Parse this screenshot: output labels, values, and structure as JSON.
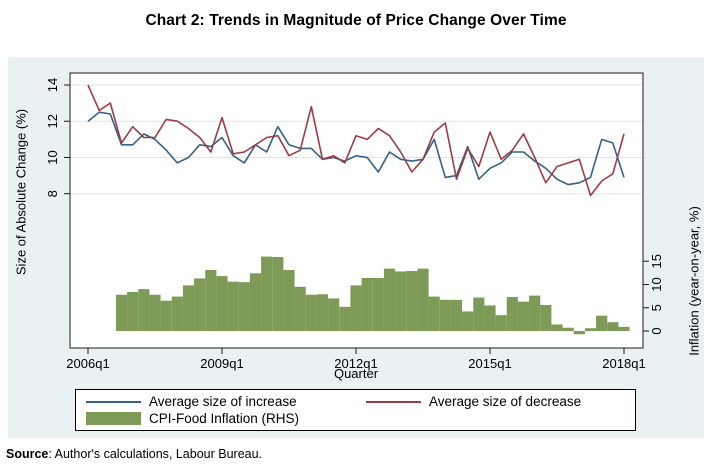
{
  "title": "Chart 2: Trends in Magnitude of Price Change Over Time",
  "source_note": {
    "label": "Source",
    "text": ": Author's calculations, Labour Bureau."
  },
  "colors": {
    "background": "#e9f1f3",
    "plot_background": "#ffffff",
    "gridline": "#d9e6e9",
    "axis": "#1a1a1a",
    "increase_line": "#35618c",
    "decrease_line": "#9e3c46",
    "inflation_bar": "#7d9b57"
  },
  "chart_data": {
    "type": "combo-line-bar",
    "x_axis": {
      "title": "Quarter",
      "tick_labels": [
        "2006q1",
        "2009q1",
        "2012q1",
        "2015q1",
        "2018q1"
      ],
      "tick_positions": [
        0,
        12,
        24,
        36,
        48
      ],
      "start": "2006q1",
      "end": "2018q1",
      "n_quarters": 49
    },
    "left_axis": {
      "title": "Size of Absolute Change (%)",
      "ticks": [
        8,
        10,
        12,
        14
      ],
      "range": [
        7.5,
        14.7
      ],
      "grid": true
    },
    "right_axis": {
      "title": "Inflation (year-on-year, %)",
      "ticks": [
        0,
        5,
        10,
        15
      ],
      "range": [
        -1,
        16.5
      ],
      "grid": false
    },
    "legend": {
      "position": "bottom",
      "border": true
    },
    "series": [
      {
        "name": "Average size of increase",
        "type": "line",
        "axis": "left",
        "color": "#35618c",
        "values": [
          12.0,
          12.5,
          12.4,
          10.7,
          10.7,
          11.3,
          11.0,
          10.4,
          9.7,
          10.0,
          10.7,
          10.6,
          11.1,
          10.1,
          9.7,
          10.7,
          10.3,
          11.7,
          10.7,
          10.5,
          10.5,
          9.9,
          10.0,
          9.8,
          10.1,
          10.0,
          9.2,
          10.3,
          9.9,
          9.8,
          9.9,
          11.0,
          8.9,
          9.0,
          10.6,
          8.8,
          9.4,
          9.7,
          10.3,
          10.3,
          9.8,
          9.4,
          8.8,
          8.5,
          8.6,
          8.9,
          11.0,
          10.8,
          8.9
        ]
      },
      {
        "name": "Average size of decrease",
        "type": "line",
        "axis": "left",
        "color": "#9e3c46",
        "values": [
          14.0,
          12.6,
          13.0,
          10.8,
          11.7,
          11.1,
          11.1,
          12.1,
          12.0,
          11.6,
          11.1,
          10.3,
          12.2,
          10.2,
          10.3,
          10.7,
          11.1,
          11.2,
          10.1,
          10.4,
          12.8,
          9.9,
          10.1,
          9.7,
          11.2,
          11.0,
          11.6,
          11.2,
          10.3,
          9.2,
          9.9,
          11.4,
          11.9,
          8.8,
          10.5,
          9.5,
          11.4,
          9.9,
          10.4,
          11.3,
          10.0,
          8.6,
          9.5,
          9.7,
          9.9,
          7.9,
          8.7,
          9.1,
          11.3
        ]
      },
      {
        "name": "CPI-Food Inflation (RHS)",
        "type": "bar",
        "axis": "right",
        "color": "#7d9b57",
        "values": [
          null,
          null,
          null,
          7.8,
          8.4,
          9.0,
          7.8,
          6.5,
          7.4,
          9.8,
          11.3,
          13.1,
          11.8,
          10.6,
          10.5,
          12.4,
          16.0,
          15.9,
          13.1,
          9.5,
          7.8,
          7.9,
          7.0,
          5.2,
          9.8,
          11.4,
          11.4,
          13.4,
          12.8,
          12.9,
          13.4,
          7.4,
          6.7,
          6.7,
          4.2,
          7.2,
          5.5,
          3.4,
          7.3,
          6.3,
          7.6,
          5.6,
          1.4,
          0.7,
          -0.7,
          0.6,
          3.3,
          1.9,
          0.9
        ]
      }
    ]
  }
}
